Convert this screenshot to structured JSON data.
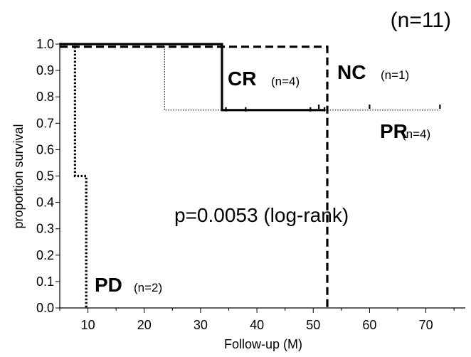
{
  "chart_data": {
    "type": "line",
    "subtype": "kaplan-meier",
    "title": "(n=11)",
    "xlabel": "Follow-up (M)",
    "ylabel": "proportion survival",
    "xlim": [
      5,
      77
    ],
    "ylim": [
      0,
      1.0
    ],
    "x_ticks": [
      10,
      20,
      30,
      40,
      50,
      60,
      70
    ],
    "x_tick_labels": [
      "10",
      "20",
      "30",
      "40",
      "50",
      "60",
      "70"
    ],
    "y_ticks": [
      0.0,
      0.1,
      0.2,
      0.3,
      0.4,
      0.5,
      0.6,
      0.7,
      0.8,
      0.9,
      1.0
    ],
    "y_tick_labels": [
      "0.0",
      "0.1",
      "0.2",
      "0.3",
      "0.4",
      "0.5",
      "0.6",
      "0.7",
      "0.8",
      "0.9",
      "1.0"
    ],
    "grid": false,
    "series": [
      {
        "name": "CR",
        "n_label": "(n=4)",
        "style": "solid",
        "steps": [
          [
            5,
            1.0
          ],
          [
            33.8,
            1.0
          ],
          [
            33.8,
            0.75
          ],
          [
            52,
            0.75
          ]
        ],
        "censors": [
          [
            34.5,
            0.75
          ],
          [
            38,
            0.75
          ],
          [
            49.5,
            0.75
          ],
          [
            52,
            0.75
          ]
        ]
      },
      {
        "name": "NC",
        "n_label": "(n=1)",
        "style": "dashed",
        "steps": [
          [
            5,
            0.99
          ],
          [
            52.5,
            0.99
          ],
          [
            52.5,
            0.0
          ]
        ],
        "censors": []
      },
      {
        "name": "PR",
        "n_label": "(n=4)",
        "style": "dotted-fine",
        "steps": [
          [
            5,
            1.0
          ],
          [
            23.6,
            1.0
          ],
          [
            23.6,
            0.75
          ],
          [
            72.5,
            0.75
          ]
        ],
        "censors": [
          [
            51,
            0.76
          ],
          [
            60,
            0.76
          ],
          [
            72.5,
            0.76
          ]
        ]
      },
      {
        "name": "PD",
        "n_label": "(n=2)",
        "style": "dotted-bold",
        "steps": [
          [
            5,
            1.0
          ],
          [
            7.7,
            1.0
          ],
          [
            7.7,
            0.5
          ],
          [
            9.7,
            0.5
          ],
          [
            9.7,
            0.0
          ]
        ],
        "censors": []
      }
    ],
    "annotations": {
      "p_value": "p=0.0053 (log-rank)"
    }
  }
}
